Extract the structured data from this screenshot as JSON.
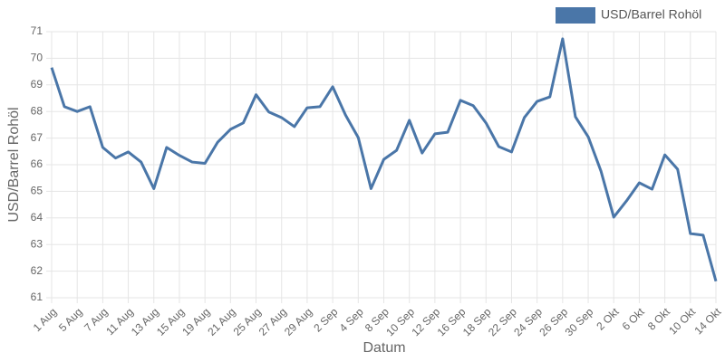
{
  "chart_data": {
    "type": "line",
    "x_label": "Datum",
    "y_label": "USD/Barrel Rohöl",
    "categories": [
      "1 Aug",
      null,
      "5 Aug",
      null,
      "7 Aug",
      null,
      "11 Aug",
      null,
      "13 Aug",
      null,
      "15 Aug",
      null,
      "19 Aug",
      null,
      "21 Aug",
      null,
      "25 Aug",
      null,
      "27 Aug",
      null,
      "29 Aug",
      null,
      "2 Sep",
      null,
      "4 Sep",
      null,
      "8 Sep",
      null,
      "10 Sep",
      null,
      "12 Sep",
      null,
      "16 Sep",
      null,
      "18 Sep",
      null,
      "22 Sep",
      null,
      "24 Sep",
      null,
      "26 Sep",
      null,
      "30 Sep",
      null,
      "2 Okt",
      null,
      "6 Okt",
      null,
      "8 Okt",
      null,
      "10 Okt",
      null,
      "14 Okt"
    ],
    "series": [
      {
        "name": "USD/Barrel Rohöl",
        "color": "#4a76a8",
        "values": [
          69.65,
          68.18,
          68.0,
          68.18,
          66.65,
          66.25,
          66.48,
          66.1,
          65.1,
          66.65,
          66.35,
          66.1,
          66.05,
          66.85,
          67.33,
          67.57,
          68.63,
          67.98,
          67.77,
          67.43,
          68.14,
          68.18,
          68.93,
          67.87,
          67.02,
          65.1,
          66.2,
          66.54,
          67.67,
          66.44,
          67.16,
          67.22,
          68.42,
          68.22,
          67.57,
          66.68,
          66.48,
          67.77,
          68.38,
          68.55,
          70.73,
          67.8,
          67.05,
          65.76,
          64.03,
          64.64,
          65.32,
          65.08,
          66.37,
          65.83,
          63.41,
          63.35,
          61.62
        ]
      }
    ],
    "ylim": [
      61,
      71
    ],
    "yticks": [
      61,
      62,
      63,
      64,
      65,
      66,
      67,
      68,
      69,
      70,
      71
    ],
    "grid": true,
    "legend": "top-right"
  }
}
